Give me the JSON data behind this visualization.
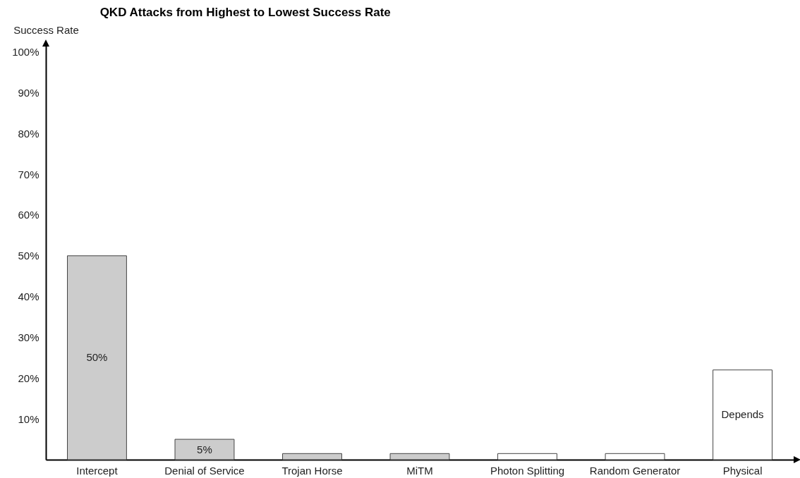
{
  "chart_data": {
    "type": "bar",
    "title": "QKD Attacks from Highest to Lowest Success Rate",
    "ylabel": "Success Rate",
    "categories": [
      "Intercept",
      "Denial of Service",
      "Trojan Horse",
      "MiTM",
      "Photon Splitting",
      "Random Generator",
      "Physical"
    ],
    "values": [
      50,
      5,
      1.5,
      1.5,
      1.5,
      1.5,
      22
    ],
    "colors": [
      "#cccccc",
      "#cccccc",
      "#cccccc",
      "#cccccc",
      "#ffffff",
      "#ffffff",
      "#ffffff"
    ],
    "value_labels": [
      "50%",
      "5%",
      null,
      null,
      null,
      null,
      "Depends"
    ],
    "ylim": [
      0,
      102
    ],
    "yticks": [
      {
        "value": 10,
        "label": "10%"
      },
      {
        "value": 20,
        "label": "20%"
      },
      {
        "value": 30,
        "label": "30%"
      },
      {
        "value": 40,
        "label": "40%"
      },
      {
        "value": 50,
        "label": "50%"
      },
      {
        "value": 60,
        "label": "60%"
      },
      {
        "value": 70,
        "label": "70%"
      },
      {
        "value": 80,
        "label": "80%"
      },
      {
        "value": 90,
        "label": "90%"
      },
      {
        "value": 100,
        "label": "100%"
      }
    ],
    "grid": false
  }
}
